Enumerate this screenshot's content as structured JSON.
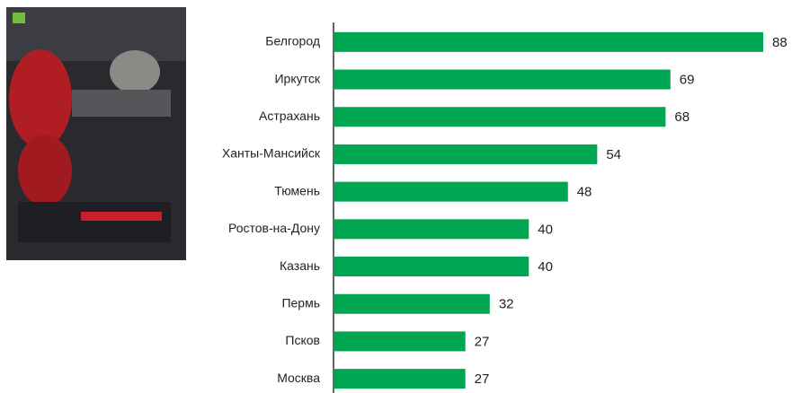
{
  "chart_data": {
    "type": "bar",
    "orientation": "horizontal",
    "categories": [
      "Белгород",
      "Иркутск",
      "Астрахань",
      "Ханты-Мансийск",
      "Тюмень",
      "Ростов-на-Дону",
      "Казань",
      "Пермь",
      "Псков",
      "Москва"
    ],
    "values": [
      88,
      69,
      68,
      54,
      48,
      40,
      40,
      32,
      27,
      27
    ],
    "color": "#00a651"
  }
}
